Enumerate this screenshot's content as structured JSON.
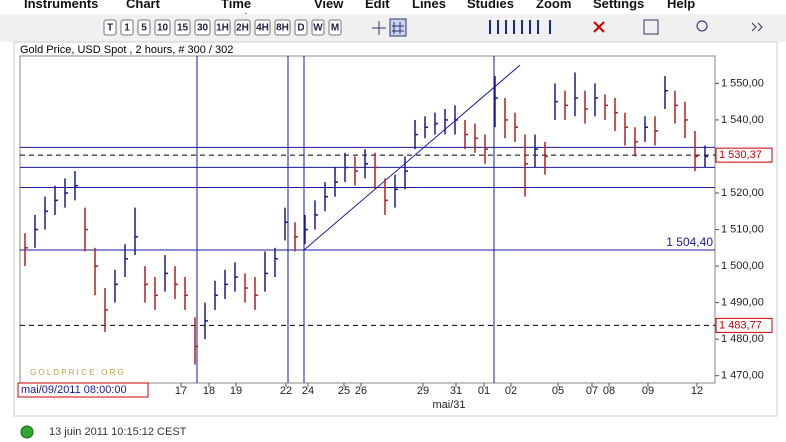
{
  "menu": [
    "Instruments",
    "Chart Type",
    "Time Scale",
    "View",
    "Edit",
    "Lines",
    "Studies",
    "Zoom",
    "Settings",
    "Help"
  ],
  "toolbar": [
    "T",
    "1",
    "5",
    "10",
    "15",
    "30",
    "1H",
    "2H",
    "4H",
    "8H",
    "D",
    "W",
    "M"
  ],
  "chart_data": {
    "type": "hlc",
    "title": "Gold Price, USD Spot , 2 hours, # 300 / 302",
    "watermark": "G O L D P R I C E . O R G",
    "color": "#b02020",
    "color_up": "#1a1a8a",
    "close": [
      1505,
      1510,
      1515,
      1518,
      1520,
      1522,
      1510,
      1500,
      1488,
      1495,
      1502,
      1508,
      1495,
      1492,
      1498,
      1495,
      1492,
      1478,
      1485,
      1492,
      1495,
      1497,
      1494,
      1492,
      1498,
      1502,
      1512,
      1508,
      1510,
      1514,
      1519,
      1523,
      1527,
      1526,
      1528,
      1527,
      1518,
      1521,
      1526,
      1536,
      1538,
      1539,
      1540,
      1540,
      1536,
      1535,
      1532,
      1546,
      1540,
      1538,
      1528,
      1532,
      1530,
      1545,
      1544,
      1546,
      1543,
      1546,
      1544,
      1542,
      1538,
      1534,
      1538,
      1537,
      1548,
      1544,
      1540,
      1530,
      1530
    ],
    "high": [
      1509,
      1514,
      1519,
      1522,
      1524,
      1526,
      1516,
      1505,
      1494,
      1499,
      1506,
      1516,
      1500,
      1497,
      1503,
      1500,
      1497,
      1486,
      1490,
      1496,
      1499,
      1501,
      1498,
      1497,
      1504,
      1505,
      1516,
      1512,
      1514,
      1518,
      1523,
      1527,
      1531,
      1530,
      1532,
      1531,
      1524,
      1525,
      1530,
      1540,
      1541,
      1542,
      1543,
      1544,
      1540,
      1539,
      1536,
      1552,
      1546,
      1542,
      1536,
      1536,
      1534,
      1550,
      1548,
      1553,
      1548,
      1550,
      1547,
      1546,
      1542,
      1538,
      1541,
      1541,
      1552,
      1548,
      1545,
      1537,
      1533
    ],
    "low": [
      1500,
      1505,
      1510,
      1514,
      1516,
      1518,
      1504,
      1492,
      1482,
      1490,
      1497,
      1503,
      1490,
      1488,
      1493,
      1491,
      1488,
      1473,
      1480,
      1488,
      1491,
      1493,
      1490,
      1488,
      1493,
      1497,
      1507,
      1504,
      1506,
      1510,
      1515,
      1519,
      1523,
      1522,
      1524,
      1521,
      1514,
      1516,
      1521,
      1532,
      1535,
      1536,
      1536,
      1536,
      1532,
      1531,
      1528,
      1538,
      1535,
      1534,
      1519,
      1527,
      1525,
      1540,
      1540,
      1541,
      1539,
      1541,
      1540,
      1537,
      1533,
      1530,
      1534,
      1533,
      1543,
      1539,
      1535,
      1526,
      1527
    ],
    "xlim": [
      -0.5,
      69
    ],
    "ylim": [
      1468,
      1557.5
    ],
    "yticks": [
      {
        "value": 1470,
        "label": "1 470,00"
      },
      {
        "value": 1480,
        "label": "1 480,00"
      },
      {
        "value": 1490,
        "label": "1 490,00"
      },
      {
        "value": 1500,
        "label": "1 500,00"
      },
      {
        "value": 1510,
        "label": "1 510,00"
      },
      {
        "value": 1520,
        "label": "1 520,00"
      },
      {
        "value": 1530,
        "label": "1 530,00"
      },
      {
        "value": 1540,
        "label": "1 540,00"
      },
      {
        "value": 1550,
        "label": "1 550,00"
      }
    ],
    "xticks": [
      {
        "value": 15.6,
        "label": "17"
      },
      {
        "value": 18.4,
        "label": "18"
      },
      {
        "value": 21.1,
        "label": "19"
      },
      {
        "value": 26.1,
        "label": "22"
      },
      {
        "value": 28.3,
        "label": "24"
      },
      {
        "value": 31.9,
        "label": "25"
      },
      {
        "value": 33.6,
        "label": "26"
      },
      {
        "value": 39.8,
        "label": "29"
      },
      {
        "value": 43.1,
        "label": "31"
      },
      {
        "value": 45.9,
        "label": "01"
      },
      {
        "value": 48.6,
        "label": "02"
      },
      {
        "value": 53.3,
        "label": "05"
      },
      {
        "value": 56.7,
        "label": "07"
      },
      {
        "value": 58.4,
        "label": "08"
      },
      {
        "value": 62.3,
        "label": "09"
      },
      {
        "value": 67.2,
        "label": "12"
      }
    ],
    "x_month_label": "mai/31",
    "cursor_label": "mai/09/2011 08:00:00",
    "hlines": [
      1532.5,
      1527,
      1521.5
    ],
    "levels": [
      {
        "value": 1530.37,
        "label": "1 530,37",
        "style": "dashed",
        "boxed": true
      },
      {
        "value": 1504.4,
        "label": "1 504,40",
        "style": "solid",
        "boxed": false
      },
      {
        "value": 1483.77,
        "label": "1 483,77",
        "style": "dashed",
        "boxed": true
      }
    ],
    "vlines": [
      17.2,
      26.3,
      27.9,
      46.9
    ],
    "trendline": {
      "x": [
        27.9,
        49.5
      ],
      "y": [
        1504.4,
        1555
      ]
    }
  },
  "status": "13 juin 2011 10:15:12 CEST"
}
